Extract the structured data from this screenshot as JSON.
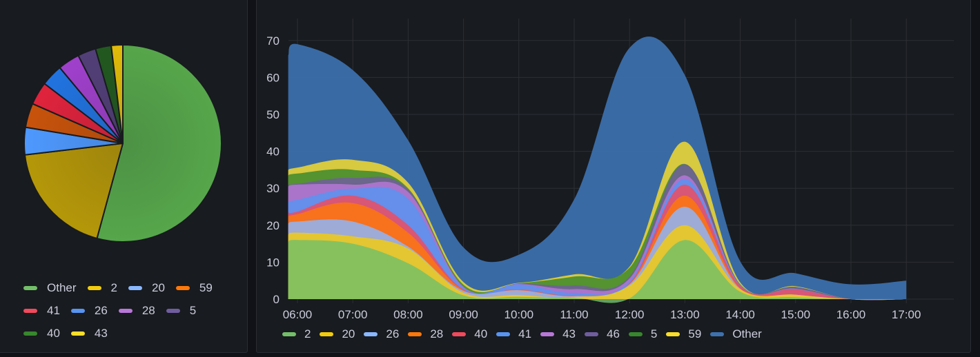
{
  "colors": {
    "background": "#111217",
    "panel": "#181b1f",
    "grid": "#2c2f35",
    "axis_text": "#ccccdc"
  },
  "pie_panel": {
    "legend": [
      {
        "label": "Other",
        "color": "#73bf69"
      },
      {
        "label": "2",
        "color": "#f2cc0c"
      },
      {
        "label": "20",
        "color": "#8ab8ff"
      },
      {
        "label": "59",
        "color": "#ff780a"
      },
      {
        "label": "41",
        "color": "#f2495c"
      },
      {
        "label": "26",
        "color": "#5794f2"
      },
      {
        "label": "28",
        "color": "#b877d9"
      },
      {
        "label": "5",
        "color": "#705da0"
      },
      {
        "label": "40",
        "color": "#37872d"
      },
      {
        "label": "43",
        "color": "#fade2a"
      }
    ]
  },
  "timeseries_panel": {
    "legend": [
      {
        "label": "2",
        "color": "#73bf69"
      },
      {
        "label": "20",
        "color": "#f2cc0c"
      },
      {
        "label": "26",
        "color": "#8ab8ff"
      },
      {
        "label": "28",
        "color": "#ff780a"
      },
      {
        "label": "40",
        "color": "#f2495c"
      },
      {
        "label": "41",
        "color": "#5794f2"
      },
      {
        "label": "43",
        "color": "#b877d9"
      },
      {
        "label": "46",
        "color": "#705da0"
      },
      {
        "label": "5",
        "color": "#37872d"
      },
      {
        "label": "59",
        "color": "#fade2a"
      },
      {
        "label": "Other",
        "color": "#3d71b0"
      }
    ],
    "y_ticks": [
      "0",
      "10",
      "20",
      "30",
      "40",
      "50",
      "60",
      "70"
    ],
    "x_ticks": [
      "06:00",
      "07:00",
      "08:00",
      "09:00",
      "10:00",
      "11:00",
      "12:00",
      "13:00",
      "14:00",
      "15:00",
      "16:00",
      "17:00"
    ]
  },
  "chart_data": [
    {
      "type": "pie",
      "title": "",
      "categories": [
        "Other",
        "2",
        "20",
        "59",
        "41",
        "26",
        "28",
        "5",
        "40",
        "43"
      ],
      "values": [
        54.5,
        19.0,
        4.5,
        4.0,
        3.8,
        3.6,
        3.6,
        3.0,
        2.6,
        1.9
      ],
      "colors": [
        "#56a64b",
        "#b59709",
        "#4e99ff",
        "#c8530b",
        "#e0233d",
        "#2173e0",
        "#a040cc",
        "#523f78",
        "#225920",
        "#e0bb09"
      ],
      "legend_position": "bottom"
    },
    {
      "type": "area",
      "stacked": true,
      "title": "",
      "xlabel": "",
      "ylabel": "",
      "ylim": [
        0,
        75
      ],
      "grid": true,
      "legend_position": "bottom",
      "x": [
        "05:50",
        "06:00",
        "07:00",
        "08:00",
        "09:00",
        "10:00",
        "11:00",
        "12:00",
        "13:00",
        "14:00",
        "15:00",
        "16:00",
        "17:00"
      ],
      "series": [
        {
          "name": "2",
          "values": [
            15.5,
            16.0,
            15.0,
            9.7,
            1.0,
            0.6,
            0.3,
            0.2,
            16.0,
            2.0,
            0.5,
            0.0,
            0.0
          ]
        },
        {
          "name": "20",
          "values": [
            2.0,
            2.0,
            2.0,
            4.0,
            0.7,
            0.5,
            0.2,
            3.5,
            4.0,
            0.7,
            0.7,
            0.0,
            0.0
          ]
        },
        {
          "name": "26",
          "values": [
            3.0,
            3.0,
            4.0,
            0.5,
            0.5,
            1.3,
            0.3,
            0.3,
            5.0,
            0.1,
            0.0,
            0.0,
            0.0
          ]
        },
        {
          "name": "28",
          "values": [
            2.0,
            2.0,
            5.0,
            3.8,
            0.2,
            0.1,
            0.1,
            0.1,
            3.0,
            0.1,
            0.0,
            0.0,
            0.0
          ]
        },
        {
          "name": "40",
          "values": [
            1.0,
            0.7,
            2.0,
            2.0,
            0.2,
            0.1,
            0.1,
            0.2,
            3.0,
            0.7,
            1.5,
            0.0,
            0.0
          ]
        },
        {
          "name": "41",
          "values": [
            3.0,
            3.2,
            1.9,
            7.2,
            0.5,
            1.4,
            0.7,
            0.5,
            1.5,
            0.1,
            0.1,
            0.0,
            0.0
          ]
        },
        {
          "name": "43",
          "values": [
            4.0,
            4.1,
            1.1,
            1.8,
            0.2,
            0.1,
            1.0,
            0.8,
            1.0,
            0.1,
            0.0,
            0.0,
            0.0
          ]
        },
        {
          "name": "46",
          "values": [
            0.5,
            0.2,
            1.8,
            0.7,
            0.1,
            0.1,
            1.0,
            0.5,
            3.0,
            0.1,
            0.5,
            0.0,
            0.0
          ]
        },
        {
          "name": "5",
          "values": [
            2.5,
            2.8,
            2.2,
            0.3,
            0.5,
            0.1,
            2.4,
            2.4,
            0.1,
            0.1,
            0.0,
            0.0,
            0.0
          ]
        },
        {
          "name": "59",
          "values": [
            1.5,
            1.6,
            2.7,
            1.5,
            0.7,
            0.1,
            0.6,
            0.3,
            6.0,
            0.5,
            0.2,
            0.0,
            0.0
          ]
        },
        {
          "name": "Other",
          "values": [
            31.0,
            33.4,
            24.3,
            11.5,
            9.4,
            7.6,
            20.3,
            59.2,
            18.0,
            5.7,
            3.5,
            4.0,
            5.0
          ]
        }
      ]
    }
  ]
}
